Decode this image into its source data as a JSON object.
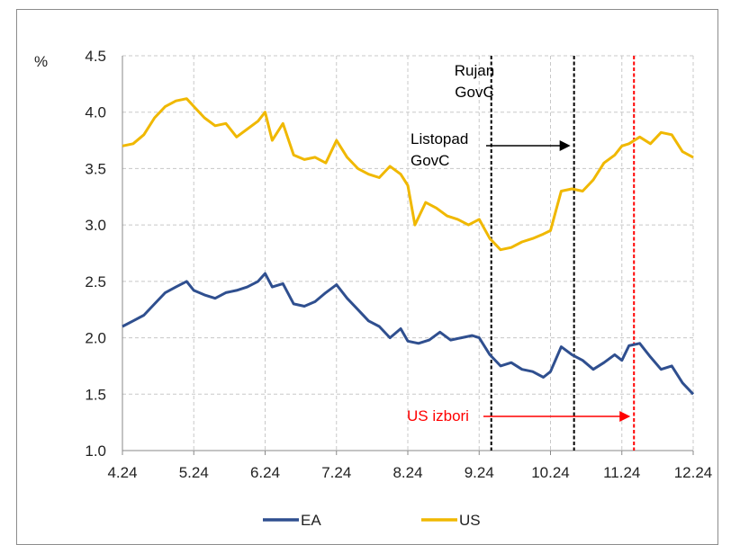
{
  "chart_data": {
    "type": "line",
    "ylabel": "%",
    "ylim": [
      1.0,
      4.5
    ],
    "yticks": [
      "1.0",
      "1.5",
      "2.0",
      "2.5",
      "3.0",
      "3.5",
      "4.0",
      "4.5"
    ],
    "xlim": [
      0,
      8
    ],
    "xticks": [
      "4.24",
      "5.24",
      "6.24",
      "7.24",
      "8.24",
      "9.24",
      "10.24",
      "11.24",
      "12.24"
    ],
    "grid": true,
    "legend_position": "bottom",
    "series": [
      {
        "name": "EA",
        "color": "#2f4f8f",
        "x": [
          0,
          0.15,
          0.3,
          0.45,
          0.6,
          0.75,
          0.9,
          1.0,
          1.15,
          1.3,
          1.45,
          1.6,
          1.75,
          1.9,
          2.0,
          2.1,
          2.25,
          2.4,
          2.55,
          2.7,
          2.85,
          3.0,
          3.15,
          3.3,
          3.45,
          3.6,
          3.75,
          3.9,
          4.0,
          4.15,
          4.3,
          4.45,
          4.6,
          4.75,
          4.9,
          5.0,
          5.15,
          5.3,
          5.45,
          5.6,
          5.75,
          5.9,
          6.0,
          6.15,
          6.3,
          6.45,
          6.6,
          6.75,
          6.9,
          7.0,
          7.1,
          7.25,
          7.4,
          7.55,
          7.7,
          7.85,
          8.0
        ],
        "values": [
          2.1,
          2.15,
          2.2,
          2.3,
          2.4,
          2.45,
          2.5,
          2.42,
          2.38,
          2.35,
          2.4,
          2.42,
          2.45,
          2.5,
          2.57,
          2.45,
          2.48,
          2.3,
          2.28,
          2.32,
          2.4,
          2.47,
          2.35,
          2.25,
          2.15,
          2.1,
          2.0,
          2.08,
          1.97,
          1.95,
          1.98,
          2.05,
          1.98,
          2.0,
          2.02,
          2.0,
          1.85,
          1.75,
          1.78,
          1.72,
          1.7,
          1.65,
          1.7,
          1.92,
          1.85,
          1.8,
          1.72,
          1.78,
          1.85,
          1.8,
          1.93,
          1.95,
          1.83,
          1.72,
          1.75,
          1.6,
          1.5
        ]
      },
      {
        "name": "US",
        "color": "#f0b800",
        "x": [
          0,
          0.15,
          0.3,
          0.45,
          0.6,
          0.75,
          0.9,
          1.0,
          1.15,
          1.3,
          1.45,
          1.6,
          1.75,
          1.9,
          2.0,
          2.1,
          2.25,
          2.4,
          2.55,
          2.7,
          2.85,
          3.0,
          3.15,
          3.3,
          3.45,
          3.6,
          3.75,
          3.9,
          4.0,
          4.1,
          4.25,
          4.4,
          4.55,
          4.7,
          4.85,
          5.0,
          5.15,
          5.3,
          5.45,
          5.6,
          5.75,
          5.9,
          6.0,
          6.15,
          6.3,
          6.45,
          6.6,
          6.75,
          6.9,
          7.0,
          7.1,
          7.25,
          7.4,
          7.55,
          7.7,
          7.85,
          8.0
        ],
        "values": [
          3.7,
          3.72,
          3.8,
          3.95,
          4.05,
          4.1,
          4.12,
          4.05,
          3.95,
          3.88,
          3.9,
          3.78,
          3.85,
          3.92,
          4.0,
          3.75,
          3.9,
          3.62,
          3.58,
          3.6,
          3.55,
          3.75,
          3.6,
          3.5,
          3.45,
          3.42,
          3.52,
          3.45,
          3.35,
          3.0,
          3.2,
          3.15,
          3.08,
          3.05,
          3.0,
          3.05,
          2.88,
          2.78,
          2.8,
          2.85,
          2.88,
          2.92,
          2.95,
          3.3,
          3.32,
          3.3,
          3.4,
          3.55,
          3.62,
          3.7,
          3.72,
          3.78,
          3.72,
          3.82,
          3.8,
          3.65,
          3.6
        ]
      }
    ],
    "vlines": [
      {
        "x": 5.17,
        "color": "#000000",
        "style": "dashed"
      },
      {
        "x": 6.33,
        "color": "#000000",
        "style": "dashed"
      },
      {
        "x": 7.17,
        "color": "#ff0000",
        "style": "dashed"
      }
    ],
    "annotations": [
      {
        "lines": [
          "Rujan",
          "GovC"
        ],
        "color": "#000000"
      },
      {
        "lines": [
          "Listopad",
          "GovC"
        ],
        "color": "#000000"
      },
      {
        "lines": [
          "US izbori"
        ],
        "color": "#ff0000"
      }
    ]
  }
}
